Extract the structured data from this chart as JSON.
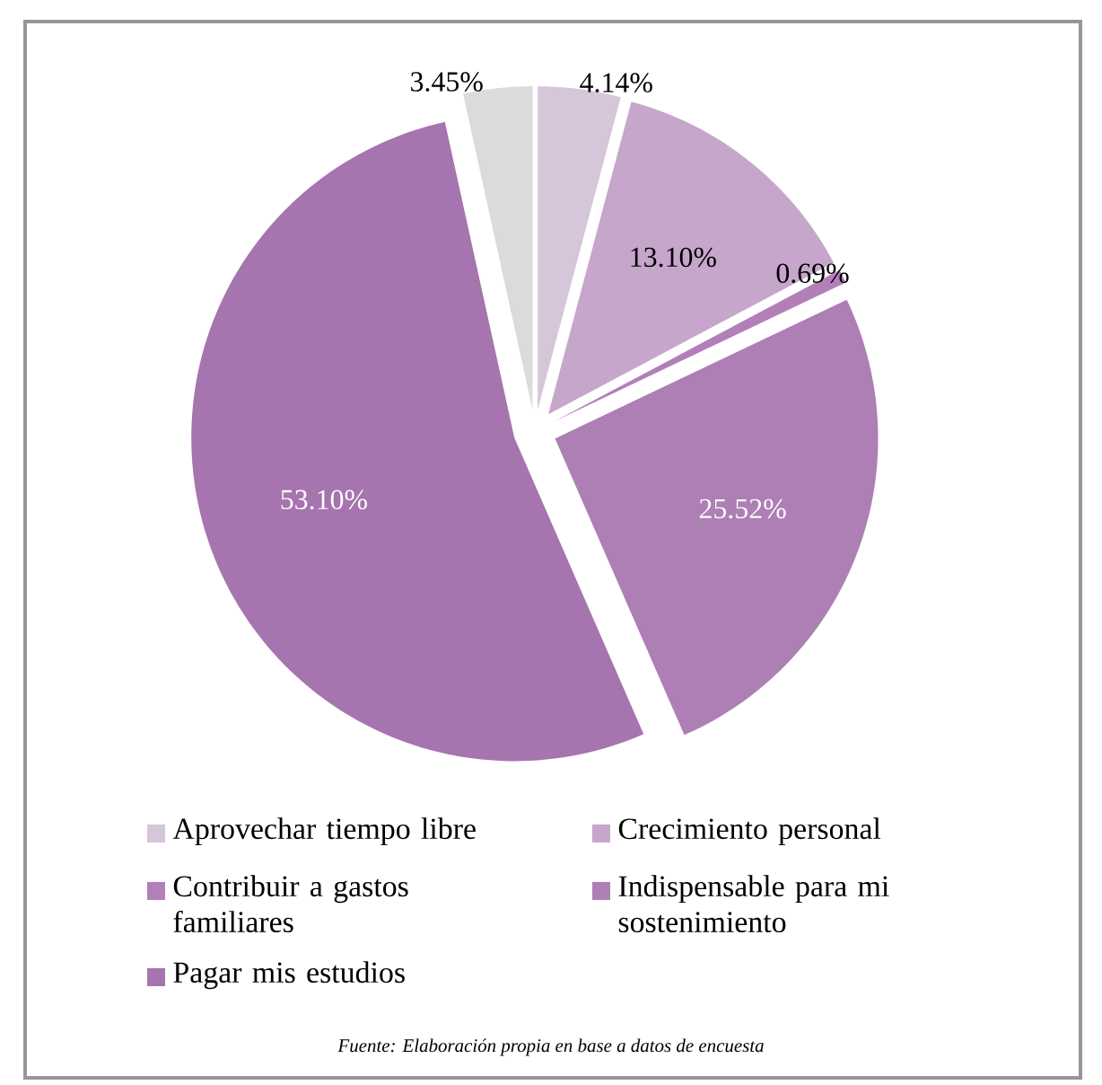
{
  "chart_data": {
    "type": "pie",
    "categories": [
      "Aprovechar tiempo libre",
      "Crecimiento personal",
      "Contribuir a gastos familiares",
      "Indispensable para mi sostenimiento",
      "Pagar mis estudios",
      null
    ],
    "values": [
      4.14,
      13.1,
      0.69,
      25.52,
      53.1,
      3.45
    ],
    "colors": [
      "#d6c6d9",
      "#c7a6cb",
      "#b27fb9",
      "#ae7fb4",
      "#a674ae",
      "#dcdadc"
    ],
    "value_labels": [
      "4.14%",
      "13.10%",
      "0.69%",
      "25.52%",
      "53.10%",
      "3.45%"
    ],
    "legend": "bottom",
    "annotations": [
      "Fuente: Elaboración propia en base a datos de encuesta"
    ]
  }
}
